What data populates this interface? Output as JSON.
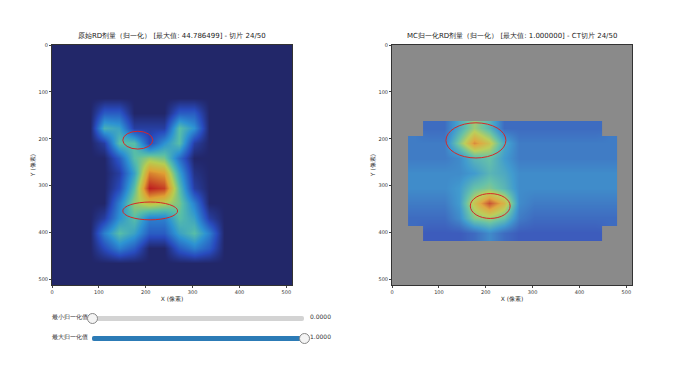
{
  "chart_data": [
    {
      "type": "heatmap",
      "title": "原始RD剂量（归一化） [最大值: 44.786499] - 切片 24/50",
      "x_label": "X (像素)",
      "y_label": "Y (像素)",
      "x": [
        16,
        48,
        80,
        112,
        144,
        176,
        208,
        240,
        272,
        304,
        336,
        368,
        400,
        432,
        464,
        496
      ],
      "y": [
        16,
        48,
        80,
        112,
        144,
        176,
        208,
        240,
        272,
        304,
        336,
        368,
        400,
        432,
        464,
        496
      ],
      "z": [
        [
          0,
          0,
          0,
          0,
          0,
          0,
          0,
          0,
          0,
          0,
          0,
          0,
          0,
          0,
          0,
          0
        ],
        [
          0,
          0,
          0,
          0,
          0,
          0,
          0,
          0,
          0,
          0,
          0,
          0,
          0,
          0,
          0,
          0
        ],
        [
          0,
          0,
          0,
          0,
          0,
          0,
          0,
          0,
          0,
          0,
          0,
          0,
          0,
          0,
          0,
          0
        ],
        [
          0,
          0,
          0,
          0,
          0,
          0,
          0,
          0,
          0,
          0,
          0,
          0,
          0,
          0,
          0,
          0
        ],
        [
          0,
          0,
          0,
          0.2,
          0.2,
          0,
          0,
          0,
          0.2,
          0.2,
          0,
          0,
          0,
          0,
          0,
          0
        ],
        [
          0,
          0,
          0,
          0.45,
          0.4,
          0.1,
          0.1,
          0.1,
          0.5,
          0.35,
          0,
          0,
          0,
          0,
          0,
          0
        ],
        [
          0,
          0,
          0,
          0.1,
          0.5,
          0.5,
          0.15,
          0.35,
          0.5,
          0.1,
          0,
          0,
          0,
          0,
          0,
          0
        ],
        [
          0,
          0,
          0,
          0,
          0.2,
          0.5,
          0.6,
          0.55,
          0.25,
          0,
          0,
          0,
          0,
          0,
          0,
          0
        ],
        [
          0,
          0,
          0,
          0,
          0.1,
          0.4,
          0.85,
          0.8,
          0.4,
          0.05,
          0,
          0,
          0,
          0,
          0,
          0
        ],
        [
          0,
          0,
          0,
          0,
          0.15,
          0.5,
          1,
          0.95,
          0.5,
          0.1,
          0,
          0,
          0,
          0,
          0,
          0
        ],
        [
          0,
          0,
          0,
          0,
          0.3,
          0.6,
          0.7,
          0.65,
          0.55,
          0.3,
          0,
          0,
          0,
          0,
          0,
          0
        ],
        [
          0,
          0,
          0,
          0.1,
          0.35,
          0.5,
          0.3,
          0.3,
          0.5,
          0.4,
          0.1,
          0,
          0,
          0,
          0,
          0
        ],
        [
          0,
          0,
          0,
          0.3,
          0.5,
          0.4,
          0.2,
          0.2,
          0.4,
          0.5,
          0.3,
          0,
          0,
          0,
          0,
          0
        ],
        [
          0,
          0,
          0,
          0.15,
          0.3,
          0.2,
          0,
          0,
          0.2,
          0.3,
          0.2,
          0,
          0,
          0,
          0,
          0
        ],
        [
          0,
          0,
          0,
          0,
          0,
          0,
          0,
          0,
          0,
          0,
          0,
          0,
          0,
          0,
          0,
          0
        ],
        [
          0,
          0,
          0,
          0,
          0,
          0,
          0,
          0,
          0,
          0,
          0,
          0,
          0,
          0,
          0,
          0
        ]
      ],
      "zlim": [
        0,
        1
      ],
      "xlim": [
        0,
        512
      ],
      "ylim": [
        512,
        0
      ],
      "xticks": [
        0,
        100,
        200,
        300,
        400,
        500
      ],
      "yticks": [
        0,
        100,
        200,
        300,
        400,
        500
      ],
      "regions": [
        {
          "x": [
            151,
            215
          ],
          "y": [
            184,
            222
          ],
          "color": "#d62728"
        },
        {
          "x": [
            151,
            268
          ],
          "y": [
            335,
            373
          ],
          "color": "#d62728"
        }
      ]
    },
    {
      "type": "heatmap",
      "title": "MC归一化RD剂量（归一化） [最大值: 1.000000] - CT切片 24/50",
      "x_label": "X (像素)",
      "y_label": "Y (像素)",
      "x": [
        16,
        48,
        80,
        112,
        144,
        176,
        208,
        240,
        272,
        304,
        336,
        368,
        400,
        432,
        464,
        496
      ],
      "y": [
        16,
        48,
        80,
        112,
        144,
        176,
        208,
        240,
        272,
        304,
        336,
        368,
        400,
        432,
        464,
        496
      ],
      "z": [
        [
          null,
          null,
          null,
          null,
          null,
          null,
          null,
          null,
          null,
          null,
          null,
          null,
          null,
          null,
          null,
          null
        ],
        [
          null,
          null,
          null,
          null,
          null,
          null,
          null,
          null,
          null,
          null,
          null,
          null,
          null,
          null,
          null,
          null
        ],
        [
          null,
          null,
          null,
          null,
          null,
          null,
          null,
          null,
          null,
          null,
          null,
          null,
          null,
          null,
          null,
          null
        ],
        [
          null,
          null,
          null,
          null,
          null,
          null,
          null,
          null,
          null,
          null,
          null,
          null,
          null,
          null,
          null,
          null
        ],
        [
          null,
          null,
          null,
          null,
          null,
          null,
          null,
          null,
          null,
          null,
          null,
          null,
          null,
          null,
          null,
          null
        ],
        [
          null,
          null,
          0.2,
          0.2,
          0.4,
          0.6,
          0.45,
          0.2,
          0.2,
          0.2,
          0.2,
          0.2,
          0.2,
          0.2,
          null,
          null
        ],
        [
          null,
          0.25,
          0.25,
          0.25,
          0.55,
          0.85,
          0.7,
          0.4,
          0.25,
          0.25,
          0.25,
          0.25,
          0.25,
          0.25,
          0.25,
          null
        ],
        [
          null,
          0.25,
          0.25,
          0.25,
          0.3,
          0.45,
          0.5,
          0.35,
          0.25,
          0.25,
          0.25,
          0.25,
          0.25,
          0.25,
          0.25,
          null
        ],
        [
          null,
          0.3,
          0.3,
          0.3,
          0.3,
          0.35,
          0.45,
          0.4,
          0.3,
          0.3,
          0.3,
          0.3,
          0.3,
          0.3,
          0.3,
          null
        ],
        [
          null,
          0.3,
          0.3,
          0.3,
          0.35,
          0.5,
          0.55,
          0.45,
          0.3,
          0.3,
          0.3,
          0.3,
          0.3,
          0.3,
          0.3,
          null
        ],
        [
          null,
          0.25,
          0.25,
          0.25,
          0.35,
          0.7,
          0.95,
          0.75,
          0.3,
          0.25,
          0.25,
          0.25,
          0.25,
          0.25,
          0.25,
          null
        ],
        [
          null,
          0.2,
          0.2,
          0.2,
          0.3,
          0.55,
          0.6,
          0.5,
          0.25,
          0.2,
          0.2,
          0.2,
          0.2,
          0.2,
          0.2,
          null
        ],
        [
          null,
          null,
          0.15,
          0.15,
          0.15,
          0.2,
          0.3,
          0.2,
          0.15,
          0.15,
          0.15,
          0.15,
          0.15,
          0.15,
          null,
          null
        ],
        [
          null,
          null,
          null,
          null,
          null,
          null,
          null,
          null,
          null,
          null,
          null,
          null,
          null,
          null,
          null,
          null
        ],
        [
          null,
          null,
          null,
          null,
          null,
          null,
          null,
          null,
          null,
          null,
          null,
          null,
          null,
          null,
          null,
          null
        ],
        [
          null,
          null,
          null,
          null,
          null,
          null,
          null,
          null,
          null,
          null,
          null,
          null,
          null,
          null,
          null,
          null
        ]
      ],
      "zlim": [
        0,
        1
      ],
      "xlim": [
        0,
        512
      ],
      "ylim": [
        512,
        0
      ],
      "xticks": [
        0,
        100,
        200,
        300,
        400,
        500
      ],
      "yticks": [
        0,
        100,
        200,
        300,
        400,
        500
      ],
      "regions": [
        {
          "x": [
            115,
            243
          ],
          "y": [
            166,
            241
          ],
          "color": "#d62728"
        },
        {
          "x": [
            167,
            252
          ],
          "y": [
            317,
            370
          ],
          "color": "#d62728"
        }
      ]
    }
  ],
  "sliders": [
    {
      "label": "最小归一化值",
      "range": [
        0,
        1
      ],
      "value": 0,
      "value_label": "0.0000"
    },
    {
      "label": "最大归一化值",
      "range": [
        0,
        1
      ],
      "value": 1,
      "value_label": "1.0000"
    }
  ]
}
